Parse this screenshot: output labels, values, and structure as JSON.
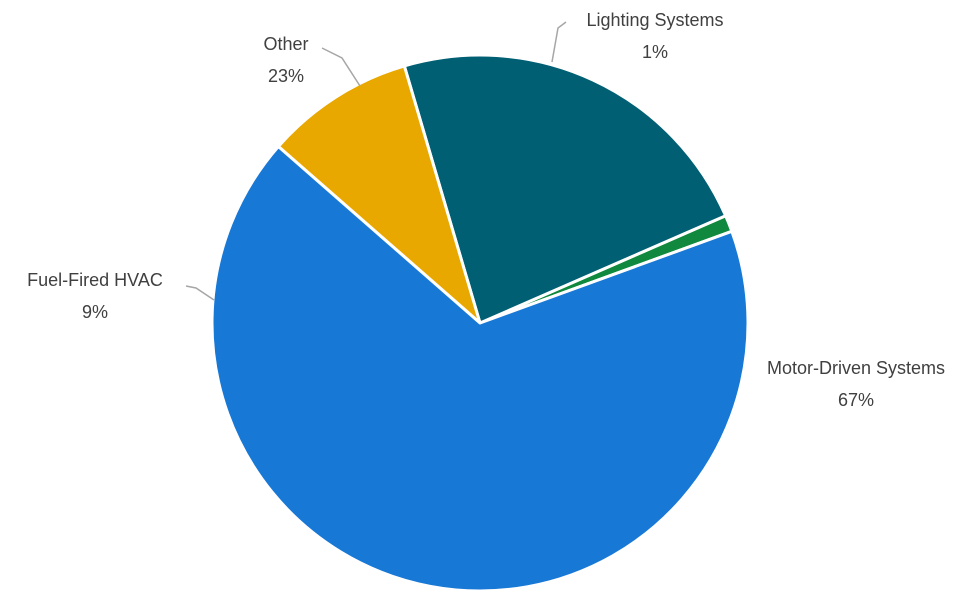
{
  "chart_data": {
    "type": "pie",
    "title": "",
    "start_angle_deg": 20,
    "direction": "counterclockwise",
    "slices": [
      {
        "label": "Lighting Systems",
        "value": 1,
        "value_label": "1%",
        "color": "#10893E"
      },
      {
        "label": "Other",
        "value": 23,
        "value_label": "23%",
        "color": "#005F73"
      },
      {
        "label": "Fuel-Fired HVAC",
        "value": 9,
        "value_label": "9%",
        "color": "#E9A800"
      },
      {
        "label": "Motor-Driven Systems",
        "value": 67,
        "value_label": "67%",
        "color": "#1878D6"
      }
    ],
    "legend": "none"
  }
}
